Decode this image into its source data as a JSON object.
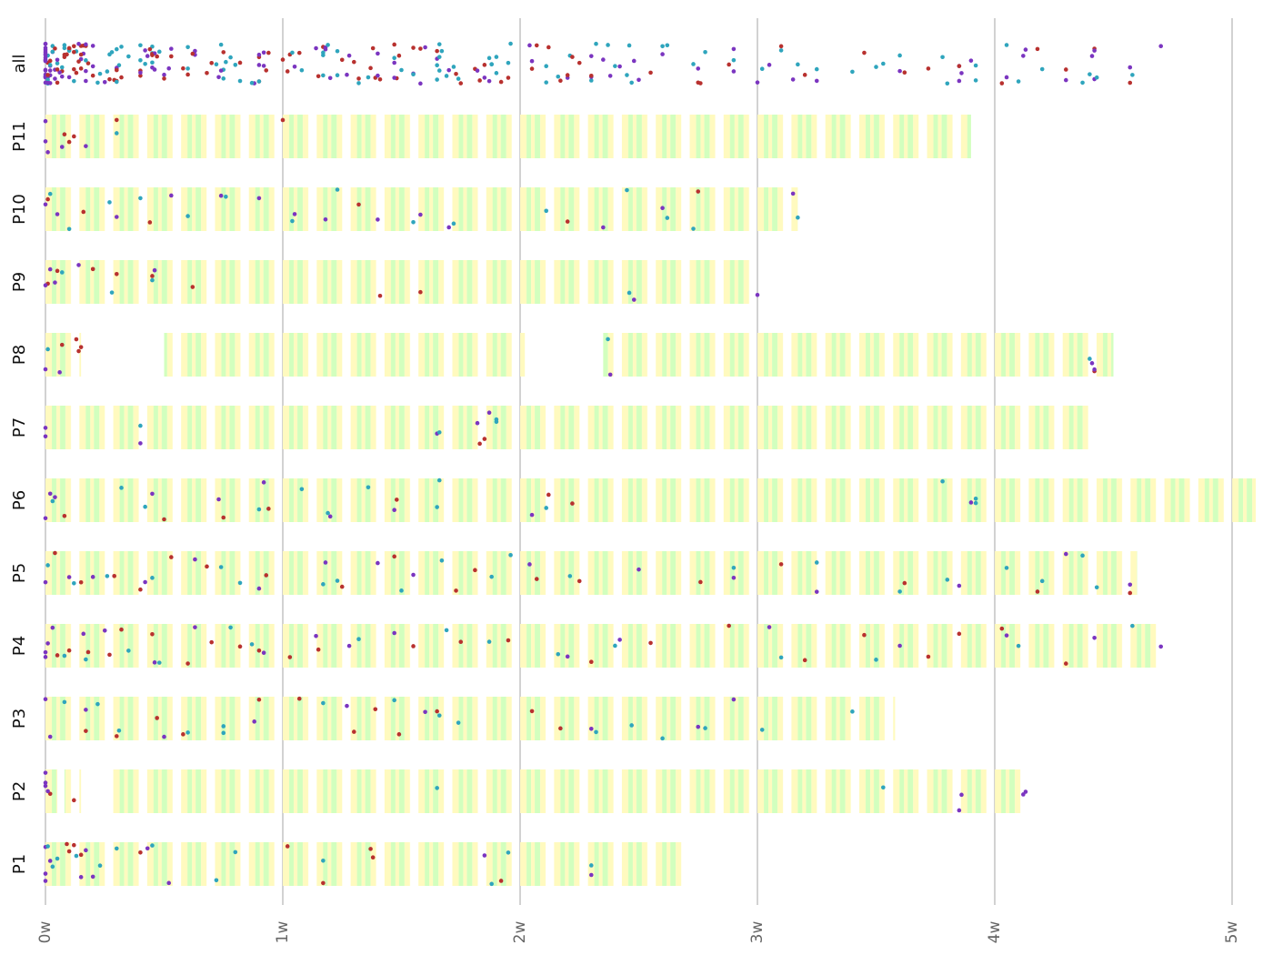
{
  "chart_data": {
    "type": "strip",
    "xlim": [
      0,
      5.1
    ],
    "xticks": [
      {
        "value": 0,
        "label": "0w"
      },
      {
        "value": 1,
        "label": "1w"
      },
      {
        "value": 2,
        "label": "2w"
      },
      {
        "value": 3,
        "label": "3w"
      },
      {
        "value": 4,
        "label": "4w"
      },
      {
        "value": 5,
        "label": "5w"
      }
    ],
    "grid": true,
    "colors": [
      "#b8312f",
      "#7b35c0",
      "#2fa5bd"
    ],
    "rows": [
      {
        "label": "P1",
        "ranges": [
          [
            0,
            2.68
          ]
        ],
        "x": [
          [
            0.09,
            0.1,
            0.12,
            0.15,
            0.4,
            1.02,
            1.17,
            1.37,
            1.38,
            1.92
          ],
          [
            0,
            0,
            0,
            0.02,
            0.15,
            0.17,
            0.2,
            0.43,
            0.52,
            1.85,
            2.3
          ],
          [
            0.01,
            0.03,
            0.05,
            0.13,
            0.23,
            0.3,
            0.45,
            0.72,
            0.8,
            1.17,
            1.88,
            1.95,
            2.3
          ]
        ]
      },
      {
        "label": "P2",
        "ranges": [
          [
            0,
            0.05
          ],
          [
            0.08,
            0.15
          ],
          [
            0.28,
            4.12
          ]
        ],
        "x": [
          [
            0.12,
            0.02
          ],
          [
            0,
            0,
            0,
            0.01,
            3.85,
            3.86,
            4.12,
            4.13
          ],
          [
            1.65,
            3.53
          ]
        ]
      },
      {
        "label": "P3",
        "ranges": [
          [
            0,
            3.58
          ]
        ],
        "x": [
          [
            0.17,
            0.3,
            0.47,
            0.58,
            0.9,
            1.07,
            1.3,
            1.39,
            1.49,
            1.65,
            2.05,
            2.17
          ],
          [
            0,
            0.02,
            0.17,
            0.5,
            0.88,
            1.27,
            1.6,
            2.3,
            2.75,
            2.9
          ],
          [
            0.08,
            0.22,
            0.31,
            0.6,
            0.75,
            0.75,
            1.17,
            1.47,
            1.66,
            1.74,
            2.32,
            2.47,
            2.6,
            2.78,
            3.02,
            3.4
          ]
        ]
      },
      {
        "label": "P4",
        "ranges": [
          [
            0,
            4.7
          ]
        ],
        "x": [
          [
            0.05,
            0.1,
            0.18,
            0.27,
            0.32,
            0.45,
            0.6,
            0.7,
            0.82,
            0.9,
            1.03,
            1.15,
            1.55,
            1.75,
            1.95,
            2.3,
            2.55,
            2.88,
            3.2,
            3.45,
            3.72,
            3.85,
            4.03,
            4.3
          ],
          [
            0,
            0,
            0.01,
            0.03,
            0.16,
            0.25,
            0.46,
            0.63,
            0.92,
            1.14,
            1.28,
            1.47,
            2.2,
            2.42,
            3.05,
            3.6,
            4.05,
            4.42,
            4.7
          ],
          [
            0.08,
            0.17,
            0.35,
            0.48,
            0.78,
            0.87,
            1.32,
            1.69,
            1.87,
            2.16,
            2.4,
            3.1,
            3.5,
            4.1,
            4.58
          ]
        ]
      },
      {
        "label": "P5",
        "ranges": [
          [
            0,
            4.6
          ]
        ],
        "x": [
          [
            0.04,
            0.15,
            0.29,
            0.4,
            0.53,
            0.68,
            0.93,
            1.25,
            1.47,
            1.73,
            1.81,
            2.07,
            2.25,
            2.76,
            3.1,
            3.62,
            4.18,
            4.57
          ],
          [
            0,
            0.1,
            0.2,
            0.42,
            0.63,
            0.9,
            1.18,
            1.4,
            1.55,
            2.04,
            2.5,
            2.9,
            3.25,
            3.85,
            4.3,
            4.57
          ],
          [
            0.01,
            0.12,
            0.26,
            0.45,
            0.74,
            0.82,
            1.17,
            1.23,
            1.5,
            1.67,
            1.88,
            1.96,
            2.21,
            2.9,
            3.25,
            3.6,
            3.8,
            4.05,
            4.2,
            4.37,
            4.43
          ]
        ]
      },
      {
        "label": "P6",
        "ranges": [
          [
            0,
            5.1
          ]
        ],
        "x": [
          [
            0.08,
            0.5,
            0.75,
            0.94,
            1.48,
            2.12,
            2.22
          ],
          [
            0,
            0.02,
            0.04,
            0.45,
            0.73,
            0.92,
            1.2,
            1.47,
            2.05,
            3.9
          ],
          [
            0.03,
            0.32,
            0.42,
            0.9,
            1.08,
            1.19,
            1.36,
            1.65,
            1.66,
            2.11,
            3.78,
            3.92,
            3.92
          ]
        ]
      },
      {
        "label": "P7",
        "ranges": [
          [
            0,
            4.4
          ]
        ],
        "x": [
          [
            1.83,
            1.85
          ],
          [
            0,
            0,
            1.65,
            1.82,
            1.87,
            0.4
          ],
          [
            0.4,
            1.66,
            1.9,
            1.9
          ]
        ]
      },
      {
        "label": "P8",
        "ranges": [
          [
            0,
            0.15
          ],
          [
            0.5,
            2.02
          ],
          [
            2.35,
            4.5
          ]
        ],
        "x": [
          [
            0.13,
            0.14,
            0.15,
            0.07,
            4.42
          ],
          [
            0,
            0.06,
            2.38,
            4.41,
            4.42
          ],
          [
            0.01,
            2.37,
            4.4
          ]
        ]
      },
      {
        "label": "P9",
        "ranges": [
          [
            0,
            3.0
          ]
        ],
        "x": [
          [
            0.01,
            0.05,
            0.2,
            0.3,
            0.45,
            0.62,
            1.41,
            1.58
          ],
          [
            0,
            0.02,
            0.04,
            0.14,
            0.46,
            2.48,
            3.0
          ],
          [
            0.28,
            0.07,
            0.45,
            2.46
          ]
        ]
      },
      {
        "label": "P10",
        "ranges": [
          [
            0,
            3.17
          ]
        ],
        "x": [
          [
            0.01,
            0.16,
            0.44,
            1.32,
            2.2,
            2.75
          ],
          [
            0,
            0.05,
            0.3,
            0.53,
            0.74,
            0.9,
            1.05,
            1.18,
            1.4,
            1.58,
            1.7,
            2.35,
            2.6,
            3.15
          ],
          [
            0.02,
            0.1,
            0.27,
            0.4,
            0.6,
            0.76,
            1.04,
            1.23,
            1.55,
            1.72,
            2.11,
            2.45,
            2.62,
            2.73,
            3.17
          ]
        ]
      },
      {
        "label": "P11",
        "ranges": [
          [
            0,
            3.9
          ]
        ],
        "x": [
          [
            0.08,
            0.1,
            0.12,
            0.3,
            1.0
          ],
          [
            0,
            0,
            0.01,
            0.07,
            0.17
          ],
          [
            0.3
          ]
        ]
      }
    ],
    "all_label": "all"
  }
}
